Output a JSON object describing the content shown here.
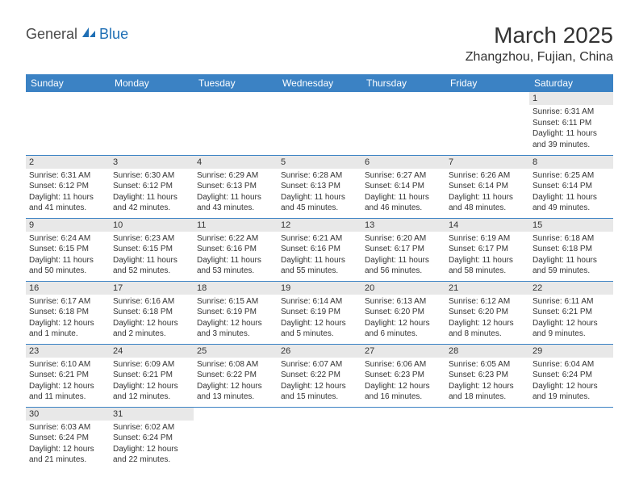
{
  "logo": {
    "part1": "General",
    "part2": "Blue"
  },
  "title": "March 2025",
  "location": "Zhangzhou, Fujian, China",
  "colors": {
    "header_bg": "#3b82c4",
    "header_fg": "#ffffff",
    "daynum_bg": "#e8e8e8",
    "border": "#3b82c4",
    "logo_blue": "#1f6fb5"
  },
  "weekdays": [
    "Sunday",
    "Monday",
    "Tuesday",
    "Wednesday",
    "Thursday",
    "Friday",
    "Saturday"
  ],
  "weeks": [
    [
      null,
      null,
      null,
      null,
      null,
      null,
      {
        "n": "1",
        "sr": "Sunrise: 6:31 AM",
        "ss": "Sunset: 6:11 PM",
        "dl": "Daylight: 11 hours and 39 minutes."
      }
    ],
    [
      {
        "n": "2",
        "sr": "Sunrise: 6:31 AM",
        "ss": "Sunset: 6:12 PM",
        "dl": "Daylight: 11 hours and 41 minutes."
      },
      {
        "n": "3",
        "sr": "Sunrise: 6:30 AM",
        "ss": "Sunset: 6:12 PM",
        "dl": "Daylight: 11 hours and 42 minutes."
      },
      {
        "n": "4",
        "sr": "Sunrise: 6:29 AM",
        "ss": "Sunset: 6:13 PM",
        "dl": "Daylight: 11 hours and 43 minutes."
      },
      {
        "n": "5",
        "sr": "Sunrise: 6:28 AM",
        "ss": "Sunset: 6:13 PM",
        "dl": "Daylight: 11 hours and 45 minutes."
      },
      {
        "n": "6",
        "sr": "Sunrise: 6:27 AM",
        "ss": "Sunset: 6:14 PM",
        "dl": "Daylight: 11 hours and 46 minutes."
      },
      {
        "n": "7",
        "sr": "Sunrise: 6:26 AM",
        "ss": "Sunset: 6:14 PM",
        "dl": "Daylight: 11 hours and 48 minutes."
      },
      {
        "n": "8",
        "sr": "Sunrise: 6:25 AM",
        "ss": "Sunset: 6:14 PM",
        "dl": "Daylight: 11 hours and 49 minutes."
      }
    ],
    [
      {
        "n": "9",
        "sr": "Sunrise: 6:24 AM",
        "ss": "Sunset: 6:15 PM",
        "dl": "Daylight: 11 hours and 50 minutes."
      },
      {
        "n": "10",
        "sr": "Sunrise: 6:23 AM",
        "ss": "Sunset: 6:15 PM",
        "dl": "Daylight: 11 hours and 52 minutes."
      },
      {
        "n": "11",
        "sr": "Sunrise: 6:22 AM",
        "ss": "Sunset: 6:16 PM",
        "dl": "Daylight: 11 hours and 53 minutes."
      },
      {
        "n": "12",
        "sr": "Sunrise: 6:21 AM",
        "ss": "Sunset: 6:16 PM",
        "dl": "Daylight: 11 hours and 55 minutes."
      },
      {
        "n": "13",
        "sr": "Sunrise: 6:20 AM",
        "ss": "Sunset: 6:17 PM",
        "dl": "Daylight: 11 hours and 56 minutes."
      },
      {
        "n": "14",
        "sr": "Sunrise: 6:19 AM",
        "ss": "Sunset: 6:17 PM",
        "dl": "Daylight: 11 hours and 58 minutes."
      },
      {
        "n": "15",
        "sr": "Sunrise: 6:18 AM",
        "ss": "Sunset: 6:18 PM",
        "dl": "Daylight: 11 hours and 59 minutes."
      }
    ],
    [
      {
        "n": "16",
        "sr": "Sunrise: 6:17 AM",
        "ss": "Sunset: 6:18 PM",
        "dl": "Daylight: 12 hours and 1 minute."
      },
      {
        "n": "17",
        "sr": "Sunrise: 6:16 AM",
        "ss": "Sunset: 6:18 PM",
        "dl": "Daylight: 12 hours and 2 minutes."
      },
      {
        "n": "18",
        "sr": "Sunrise: 6:15 AM",
        "ss": "Sunset: 6:19 PM",
        "dl": "Daylight: 12 hours and 3 minutes."
      },
      {
        "n": "19",
        "sr": "Sunrise: 6:14 AM",
        "ss": "Sunset: 6:19 PM",
        "dl": "Daylight: 12 hours and 5 minutes."
      },
      {
        "n": "20",
        "sr": "Sunrise: 6:13 AM",
        "ss": "Sunset: 6:20 PM",
        "dl": "Daylight: 12 hours and 6 minutes."
      },
      {
        "n": "21",
        "sr": "Sunrise: 6:12 AM",
        "ss": "Sunset: 6:20 PM",
        "dl": "Daylight: 12 hours and 8 minutes."
      },
      {
        "n": "22",
        "sr": "Sunrise: 6:11 AM",
        "ss": "Sunset: 6:21 PM",
        "dl": "Daylight: 12 hours and 9 minutes."
      }
    ],
    [
      {
        "n": "23",
        "sr": "Sunrise: 6:10 AM",
        "ss": "Sunset: 6:21 PM",
        "dl": "Daylight: 12 hours and 11 minutes."
      },
      {
        "n": "24",
        "sr": "Sunrise: 6:09 AM",
        "ss": "Sunset: 6:21 PM",
        "dl": "Daylight: 12 hours and 12 minutes."
      },
      {
        "n": "25",
        "sr": "Sunrise: 6:08 AM",
        "ss": "Sunset: 6:22 PM",
        "dl": "Daylight: 12 hours and 13 minutes."
      },
      {
        "n": "26",
        "sr": "Sunrise: 6:07 AM",
        "ss": "Sunset: 6:22 PM",
        "dl": "Daylight: 12 hours and 15 minutes."
      },
      {
        "n": "27",
        "sr": "Sunrise: 6:06 AM",
        "ss": "Sunset: 6:23 PM",
        "dl": "Daylight: 12 hours and 16 minutes."
      },
      {
        "n": "28",
        "sr": "Sunrise: 6:05 AM",
        "ss": "Sunset: 6:23 PM",
        "dl": "Daylight: 12 hours and 18 minutes."
      },
      {
        "n": "29",
        "sr": "Sunrise: 6:04 AM",
        "ss": "Sunset: 6:24 PM",
        "dl": "Daylight: 12 hours and 19 minutes."
      }
    ],
    [
      {
        "n": "30",
        "sr": "Sunrise: 6:03 AM",
        "ss": "Sunset: 6:24 PM",
        "dl": "Daylight: 12 hours and 21 minutes."
      },
      {
        "n": "31",
        "sr": "Sunrise: 6:02 AM",
        "ss": "Sunset: 6:24 PM",
        "dl": "Daylight: 12 hours and 22 minutes."
      },
      null,
      null,
      null,
      null,
      null
    ]
  ]
}
